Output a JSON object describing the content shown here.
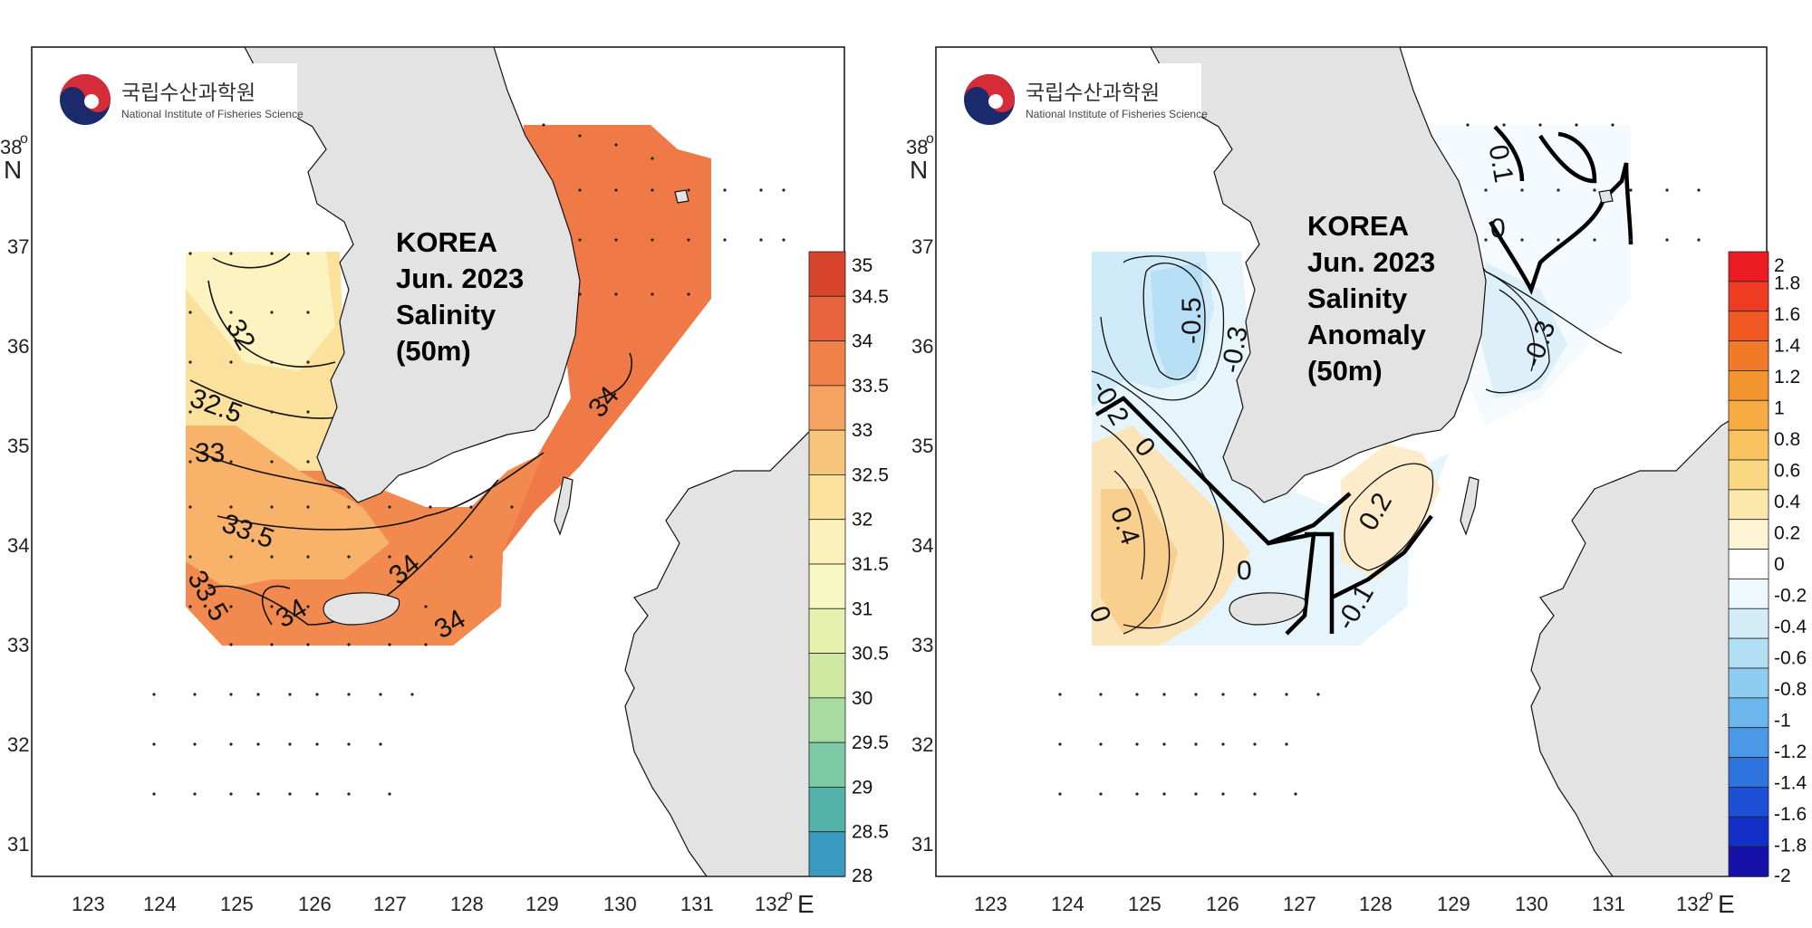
{
  "institution": {
    "korean_name": "국립수산과학원",
    "english_name": "National Institute of Fisheries Science"
  },
  "colors": {
    "land": "#e3e3e3",
    "coast": "#111111",
    "salinity_fill": "#f07a48",
    "anomaly_neg": "#cfeaf8",
    "anomaly_pos": "#fbe4b8"
  },
  "axes": {
    "lon_ticks": [
      "123",
      "124",
      "125",
      "126",
      "127",
      "128",
      "129",
      "130",
      "131",
      "132"
    ],
    "lat_ticks": [
      "31",
      "32",
      "33",
      "34",
      "35",
      "36",
      "37",
      "38"
    ],
    "lon_unit": "E",
    "lat_unit": "N",
    "degree": "o"
  },
  "maps": [
    {
      "title": [
        "KOREA",
        "Jun. 2023",
        "Salinity",
        "(50m)"
      ],
      "variable": "Salinity",
      "depth": "50m",
      "contour_labels": [
        "32",
        "32.5",
        "33",
        "33.5",
        "33.5",
        "34",
        "34",
        "34",
        "34"
      ],
      "colorbar": {
        "labels": [
          "35",
          "34.5",
          "34",
          "33.5",
          "33",
          "32.5",
          "32",
          "31.5",
          "31",
          "30.5",
          "30",
          "29.5",
          "29",
          "28.5",
          "28"
        ],
        "colors": [
          "#d8432c",
          "#e8643c",
          "#f08148",
          "#f5a262",
          "#f8c57c",
          "#fbe19c",
          "#fcf1ba",
          "#f6f8c4",
          "#e6f1b0",
          "#cfe8a2",
          "#a9dca2",
          "#7ccaa6",
          "#55b2aa",
          "#3b9abf"
        ]
      }
    },
    {
      "title": [
        "KOREA",
        "Jun. 2023",
        "Salinity",
        "Anomaly",
        "(50m)"
      ],
      "variable": "Salinity Anomaly",
      "depth": "50m",
      "contour_labels": [
        "-0.5",
        "-0.3",
        "-0.2",
        "0",
        "0.4",
        "0",
        "0",
        "0.2",
        "-0.1",
        "0.1",
        "0",
        "-0.3"
      ],
      "colorbar": {
        "labels": [
          "2",
          "1.8",
          "1.6",
          "1.4",
          "1.2",
          "1",
          "0.8",
          "0.6",
          "0.4",
          "0.2",
          "0",
          "-0.2",
          "-0.4",
          "-0.6",
          "-0.8",
          "-1",
          "-1.2",
          "-1.4",
          "-1.6",
          "-1.8",
          "-2"
        ],
        "colors": [
          "#ec1c24",
          "#ee3b22",
          "#f05a22",
          "#f17a28",
          "#f3952f",
          "#f6ac42",
          "#f8c25e",
          "#fad783",
          "#fce8ad",
          "#fdf4d6",
          "#ffffff",
          "#eef8fd",
          "#d3ecf8",
          "#b3dff4",
          "#8fcdf0",
          "#6bb6ec",
          "#4a98e6",
          "#2f73de",
          "#1c4fd4",
          "#1230c8",
          "#1612a8"
        ]
      }
    }
  ]
}
